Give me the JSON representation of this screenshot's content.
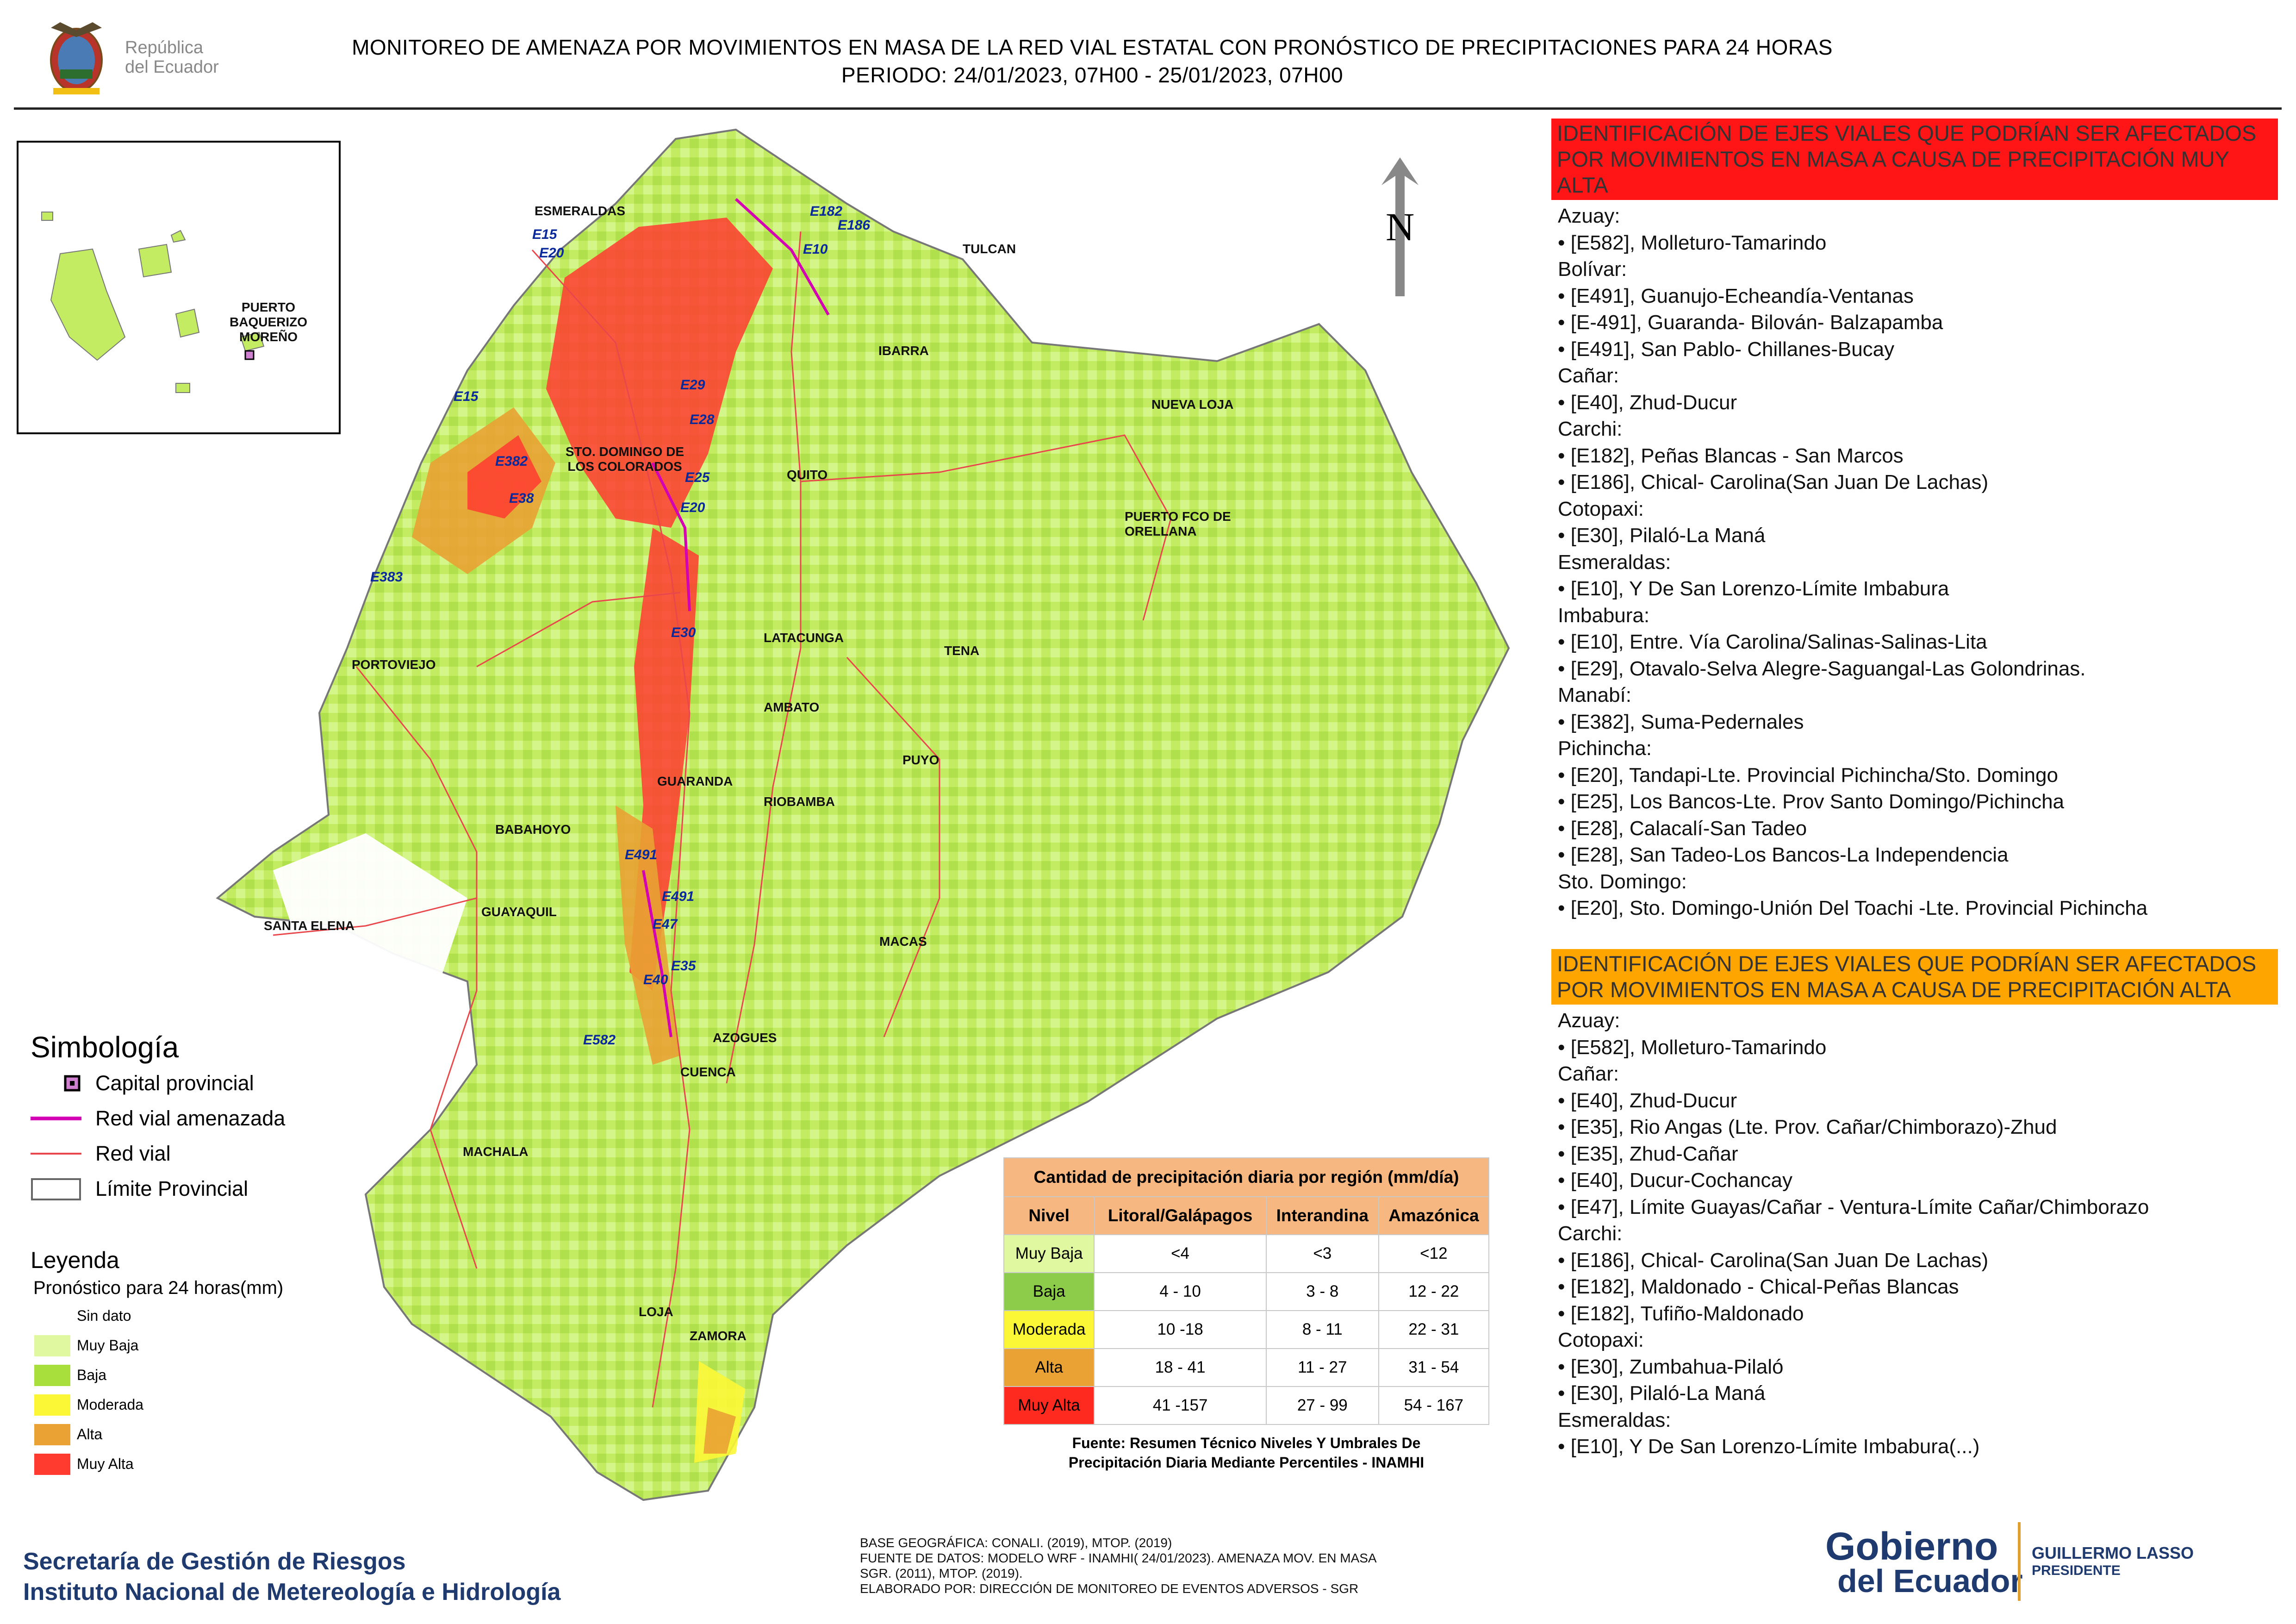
{
  "header": {
    "logo_text_line1": "República",
    "logo_text_line2": "del Ecuador",
    "title_line1": "MONITOREO DE AMENAZA POR MOVIMIENTOS EN MASA DE LA RED VIAL  ESTATAL  CON PRONÓSTICO  DE  PRECIPITACIONES PARA 24 HORAS",
    "title_line2": "PERIODO: 24/01/2023, 07H00 - 25/01/2023, 07H00"
  },
  "map": {
    "north_label": "N",
    "inset_city": "PUERTO BAQUERIZO MOREÑO",
    "cities": [
      {
        "name": "ESMERALDAS"
      },
      {
        "name": "TULCAN"
      },
      {
        "name": "IBARRA"
      },
      {
        "name": "NUEVA LOJA"
      },
      {
        "name": "STO. DOMINGO DE LOS COLORADOS"
      },
      {
        "name": "QUITO"
      },
      {
        "name": "PUERTO FCO DE ORELLANA"
      },
      {
        "name": "PORTOVIEJO"
      },
      {
        "name": "LATACUNGA"
      },
      {
        "name": "TENA"
      },
      {
        "name": "AMBATO"
      },
      {
        "name": "PUYO"
      },
      {
        "name": "GUARANDA"
      },
      {
        "name": "RIOBAMBA"
      },
      {
        "name": "BABAHOYO"
      },
      {
        "name": "GUAYAQUIL"
      },
      {
        "name": "SANTA ELENA"
      },
      {
        "name": "MACAS"
      },
      {
        "name": "AZOGUES"
      },
      {
        "name": "CUENCA"
      },
      {
        "name": "MACHALA"
      },
      {
        "name": "LOJA"
      },
      {
        "name": "ZAMORA"
      }
    ],
    "roads": [
      "E15",
      "E20",
      "E182",
      "E186",
      "E10",
      "E29",
      "E28",
      "E15",
      "E382",
      "E38",
      "E25",
      "E20",
      "E383",
      "E30",
      "E491",
      "E491",
      "E47",
      "E40",
      "E35",
      "E582"
    ]
  },
  "panel_very_high": {
    "header": "IDENTIFICACIÓN DE EJES VIALES QUE PODRÍAN SER AFECTADOS POR MOVIMIENTOS EN MASA A CAUSA DE PRECIPITACIÓN MUY ALTA",
    "header_color": "#ff1515",
    "lines": [
      "Azuay:",
      "• [E582], Molleturo-Tamarindo",
      "Bolívar:",
      "• [E491], Guanujo-Echeandía-Ventanas",
      "• [E-491], Guaranda- Bilován- Balzapamba",
      "• [E491], San Pablo- Chillanes-Bucay",
      "Cañar:",
      "• [E40], Zhud-Ducur",
      "Carchi:",
      "• [E182], Peñas Blancas - San Marcos",
      "• [E186], Chical- Carolina(San Juan De Lachas)",
      "Cotopaxi:",
      "• [E30], Pilaló-La Maná",
      "Esmeraldas:",
      "• [E10], Y De San Lorenzo-Límite Imbabura",
      "Imbabura:",
      "• [E10], Entre. Vía Carolina/Salinas-Salinas-Lita",
      "• [E29], Otavalo-Selva Alegre-Saguangal-Las Golondrinas.",
      "Manabí:",
      "• [E382], Suma-Pedernales",
      "Pichincha:",
      "• [E20], Tandapi-Lte. Provincial Pichincha/Sto. Domingo",
      "• [E25], Los Bancos-Lte. Prov Santo Domingo/Pichincha",
      "• [E28], Calacalí-San Tadeo",
      "• [E28], San Tadeo-Los Bancos-La Independencia",
      "Sto. Domingo:",
      "• [E20], Sto. Domingo-Unión Del Toachi -Lte. Provincial Pichincha"
    ]
  },
  "panel_high": {
    "header": "IDENTIFICACIÓN DE EJES VIALES QUE PODRÍAN SER AFECTADOS POR MOVIMIENTOS EN MASA A CAUSA DE PRECIPITACIÓN  ALTA",
    "header_color": "#ffa500",
    "lines": [
      "Azuay:",
      "• [E582], Molleturo-Tamarindo",
      "Cañar:",
      "• [E40], Zhud-Ducur",
      "• [E35], Rio Angas (Lte. Prov. Cañar/Chimborazo)-Zhud",
      "• [E35], Zhud-Cañar",
      "• [E40], Ducur-Cochancay",
      "• [E47], Límite Guayas/Cañar - Ventura-Límite Cañar/Chimborazo",
      "Carchi:",
      "• [E186], Chical- Carolina(San Juan De Lachas)",
      "• [E182], Maldonado - Chical-Peñas Blancas",
      "• [E182], Tufiño-Maldonado",
      "Cotopaxi:",
      "• [E30], Zumbahua-Pilaló",
      "• [E30], Pilaló-La Maná",
      "Esmeraldas:",
      "• [E10], Y De San Lorenzo-Límite Imbabura(...)"
    ]
  },
  "simbologia": {
    "title": "Simbología",
    "items": [
      {
        "label": "Capital provincial",
        "icon": "capital-square"
      },
      {
        "label": "Red vial amenazada",
        "color": "#d400b4"
      },
      {
        "label": "Red vial",
        "color": "#e8474c"
      },
      {
        "label": "Límite Provincial",
        "icon": "outline-box"
      }
    ]
  },
  "leyenda": {
    "title": "Leyenda",
    "subtitle": "Pronóstico para 24 horas(mm)",
    "items": [
      {
        "label": "Sin dato",
        "color": "#ffffff"
      },
      {
        "label": " Muy Baja",
        "color": "#e0f9a0"
      },
      {
        "label": "Baja",
        "color": "#a8df3c"
      },
      {
        "label": "Moderada",
        "color": "#fcf736"
      },
      {
        "label": "Alta",
        "color": "#e9a233"
      },
      {
        "label": "Muy Alta",
        "color": "#ff3b30"
      }
    ]
  },
  "precip_table": {
    "title": "Cantidad de precipitación diaria por región (mm/día)",
    "headers": [
      "Nivel",
      "Litoral/Galápagos",
      "Interandina",
      "Amazónica"
    ],
    "rows": [
      {
        "level": "Muy Baja",
        "color": "#e0f9a0",
        "values": [
          "<4",
          "<3",
          "<12"
        ]
      },
      {
        "level": "Baja",
        "color": "#8ccc4a",
        "values": [
          "4 - 10",
          "3 - 8",
          "12 - 22"
        ]
      },
      {
        "level": "Moderada",
        "color": "#fcf736",
        "values": [
          "10 -18",
          "8 - 11",
          "22 - 31"
        ]
      },
      {
        "level": "Alta",
        "color": "#e9a233",
        "values": [
          "18 - 41",
          "11 - 27",
          "31 - 54"
        ]
      },
      {
        "level": "Muy Alta",
        "color": "#ff2a1f",
        "values": [
          "41 -157",
          "27 - 99",
          "54 - 167"
        ]
      }
    ],
    "source_line1": "Fuente: Resumen Técnico Niveles Y Umbrales De",
    "source_line2": "Precipitación Diaria Mediante Percentiles - INAMHI"
  },
  "footer": {
    "org_line1": "Secretaría de Gestión de Riesgos",
    "org_line2": "Instituto Nacional de Metereología e Hidrología",
    "credits": [
      "BASE GEOGRÁFICA: CONALI. (2019), MTOP. (2019)",
      "FUENTE DE DATOS: MODELO WRF - INAMHI( 24/01/2023).  AMENAZA MOV. EN MASA",
      "SGR. (2011), MTOP. (2019).",
      "ELABORADO POR: DIRECCIÓN DE MONITOREO DE EVENTOS ADVERSOS - SGR"
    ],
    "gov_logo_line1": "Gobierno",
    "gov_logo_line2": "del Ecuador",
    "president_name": "GUILLERMO LASSO",
    "president_title": "PRESIDENTE"
  }
}
